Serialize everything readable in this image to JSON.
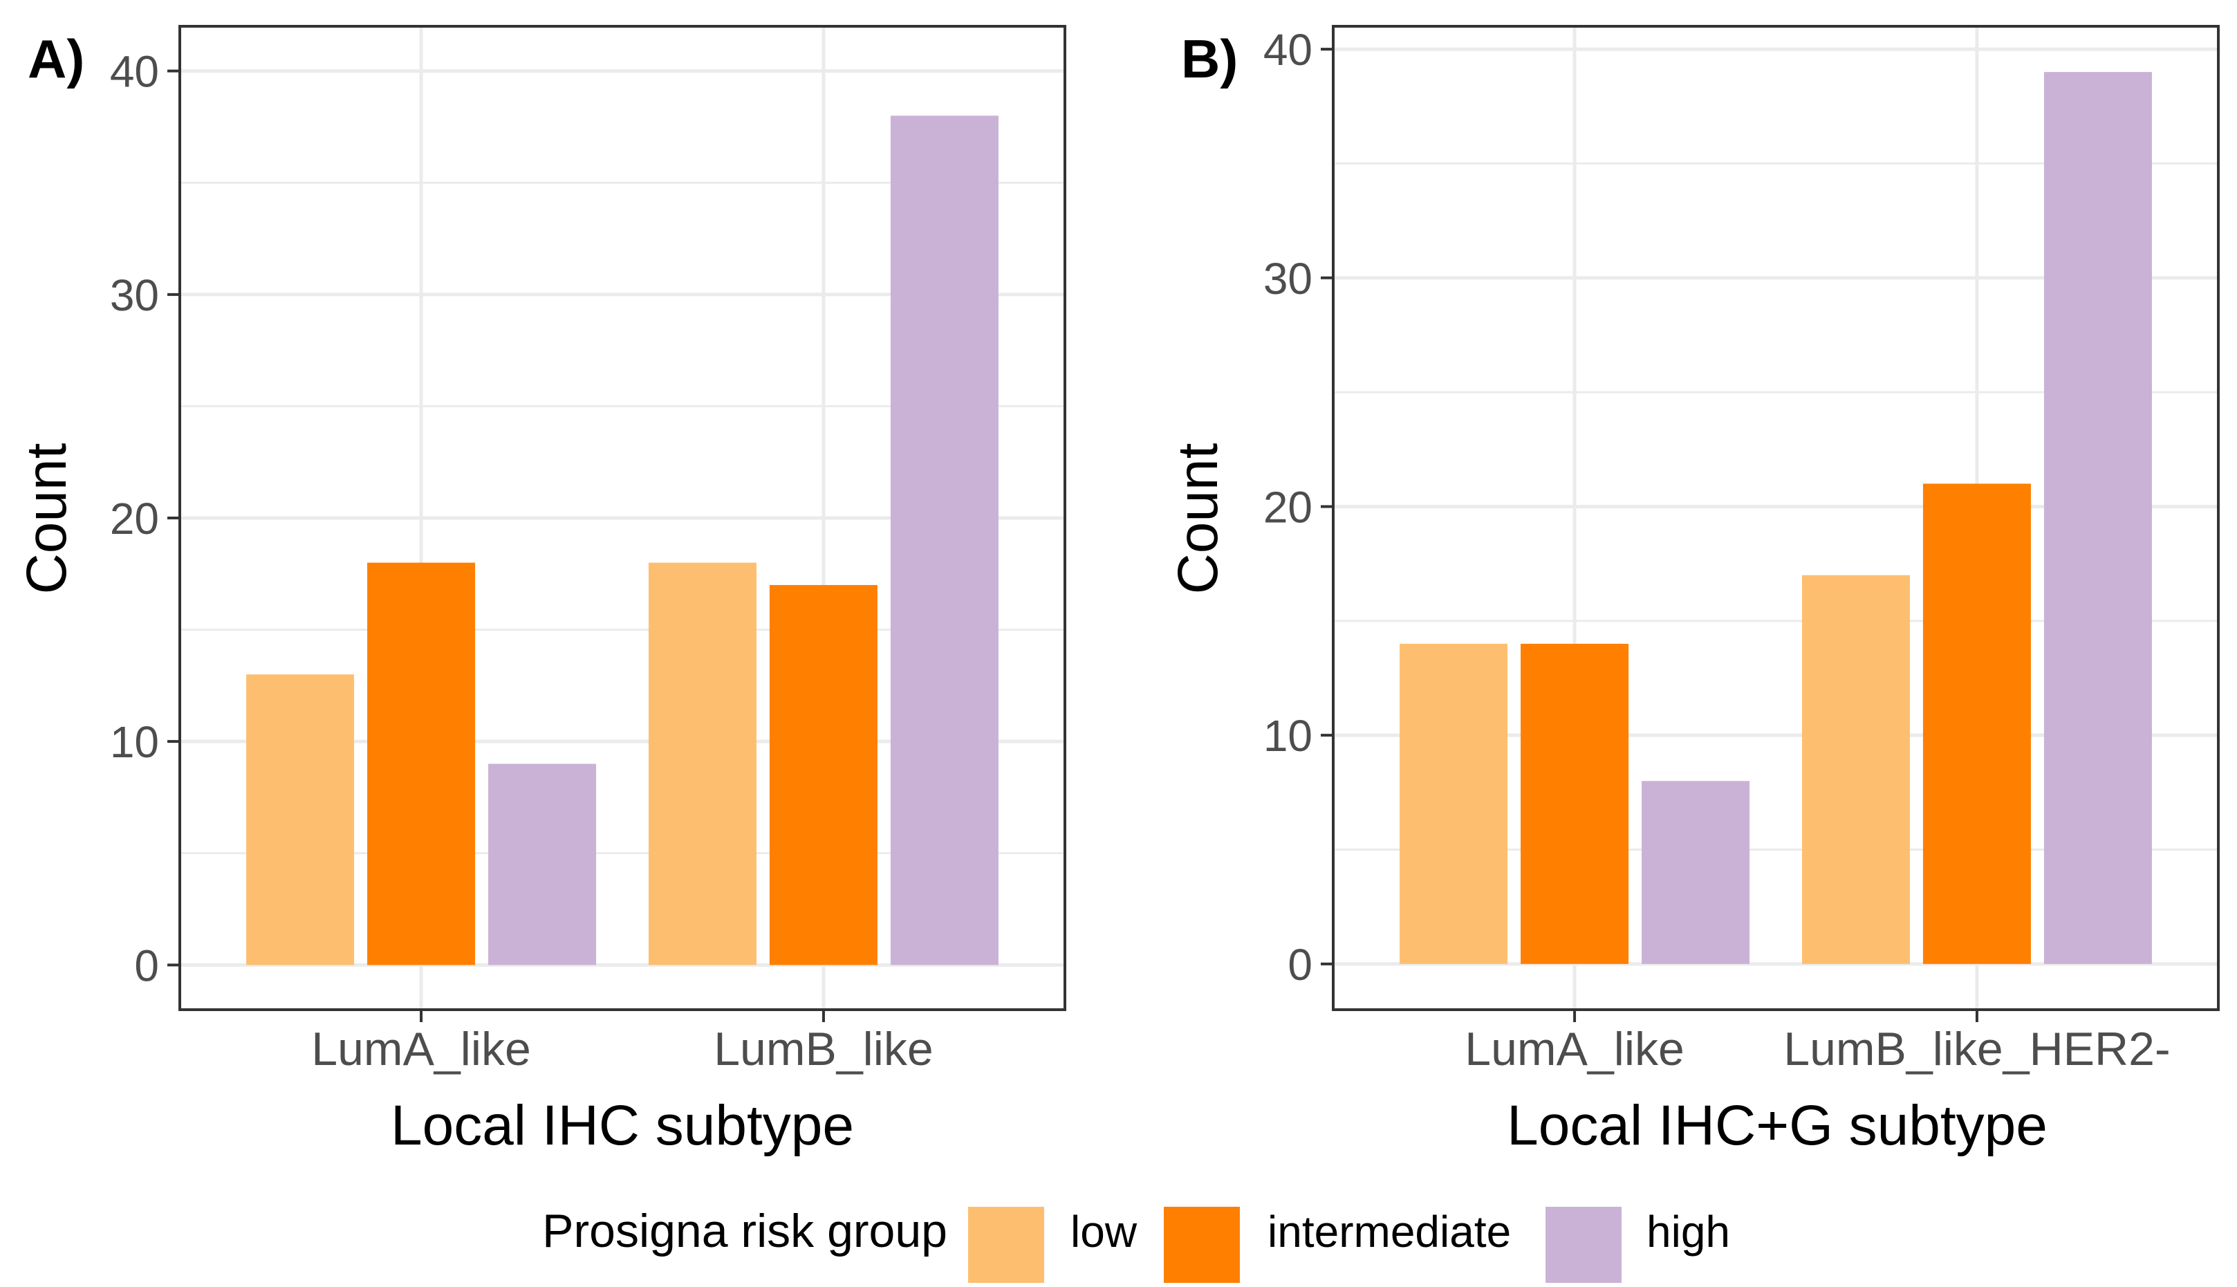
{
  "legend": {
    "title": "Prosigna risk group",
    "items": [
      {
        "label": "low",
        "color": "#FDBF6F"
      },
      {
        "label": "intermediate",
        "color": "#FF7F00"
      },
      {
        "label": "high",
        "color": "#CAB2D6"
      }
    ]
  },
  "chart_data": [
    {
      "panel_label": "A)",
      "type": "bar",
      "title": "",
      "xlabel": "Local IHC subtype",
      "ylabel": "Count",
      "categories": [
        "LumA_like",
        "LumB_like"
      ],
      "series": [
        {
          "name": "low",
          "values": [
            13,
            18
          ]
        },
        {
          "name": "intermediate",
          "values": [
            18,
            17
          ]
        },
        {
          "name": "high",
          "values": [
            9,
            38
          ]
        }
      ],
      "ylim": [
        -2,
        42
      ],
      "yticks": [
        0,
        10,
        20,
        30,
        40
      ],
      "grid": true
    },
    {
      "panel_label": "B)",
      "type": "bar",
      "title": "",
      "xlabel": "Local IHC+G subtype",
      "ylabel": "Count",
      "categories": [
        "LumA_like",
        "LumB_like_HER2-"
      ],
      "series": [
        {
          "name": "low",
          "values": [
            14,
            17
          ]
        },
        {
          "name": "intermediate",
          "values": [
            14,
            21
          ]
        },
        {
          "name": "high",
          "values": [
            8,
            39
          ]
        }
      ],
      "ylim": [
        -2,
        41
      ],
      "yticks": [
        0,
        10,
        20,
        30,
        40
      ],
      "grid": true
    }
  ]
}
